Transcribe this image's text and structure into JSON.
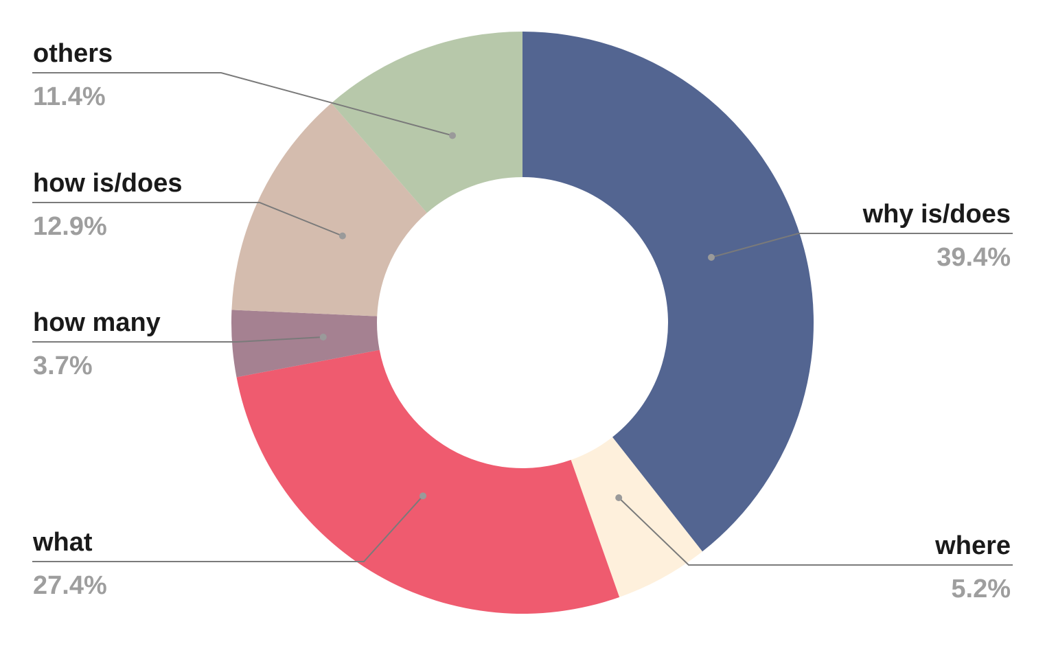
{
  "chart_data": {
    "type": "pie",
    "variant": "donut",
    "legend": "none",
    "slices": [
      {
        "label": "why is/does",
        "value": 39.4,
        "display": "39.4%",
        "color": "#536591"
      },
      {
        "label": "where",
        "value": 5.2,
        "display": "5.2%",
        "color": "#fef0dc"
      },
      {
        "label": "what",
        "value": 27.4,
        "display": "27.4%",
        "color": "#ef5b6f"
      },
      {
        "label": "how many",
        "value": 3.7,
        "display": "3.7%",
        "color": "#a58191"
      },
      {
        "label": "how is/does",
        "value": 12.9,
        "display": "12.9%",
        "color": "#d4bcae"
      },
      {
        "label": "others",
        "value": 11.4,
        "display": "11.4%",
        "color": "#b7c8aa"
      }
    ]
  }
}
